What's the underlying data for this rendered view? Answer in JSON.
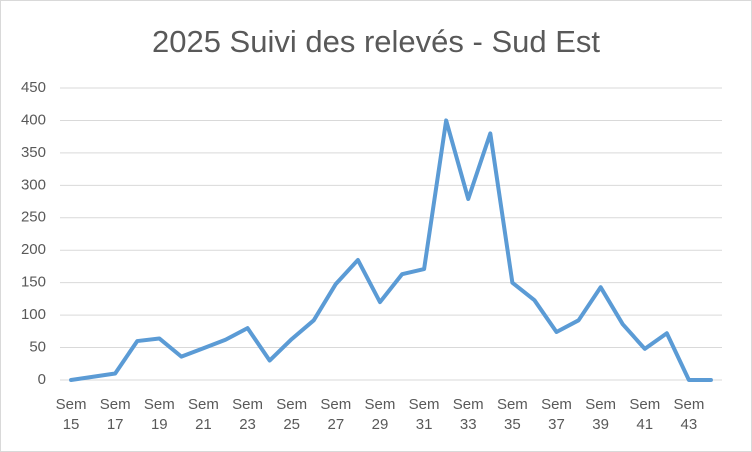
{
  "chart_data": {
    "type": "line",
    "title": "2025 Suivi des relevés - Sud Est",
    "categories": [
      "Sem 15",
      null,
      "Sem 17",
      null,
      "Sem 19",
      null,
      "Sem 21",
      null,
      "Sem 23",
      null,
      "Sem 25",
      null,
      "Sem 27",
      null,
      "Sem 29",
      null,
      "Sem 31",
      null,
      "Sem 33",
      null,
      "Sem 35",
      null,
      "Sem 37",
      null,
      "Sem 39",
      null,
      "Sem 41",
      null,
      "Sem 43",
      null
    ],
    "values": [
      0,
      5,
      10,
      60,
      64,
      36,
      49,
      62,
      80,
      30,
      63,
      92,
      148,
      185,
      120,
      163,
      171,
      400,
      279,
      380,
      150,
      123,
      74,
      92,
      143,
      86,
      48,
      72,
      0,
      0
    ],
    "color": "#5b9bd5",
    "ylim": [
      0,
      450
    ],
    "yticks": [
      0,
      50,
      100,
      150,
      200,
      250,
      300,
      350,
      400,
      450
    ],
    "grid": true
  }
}
